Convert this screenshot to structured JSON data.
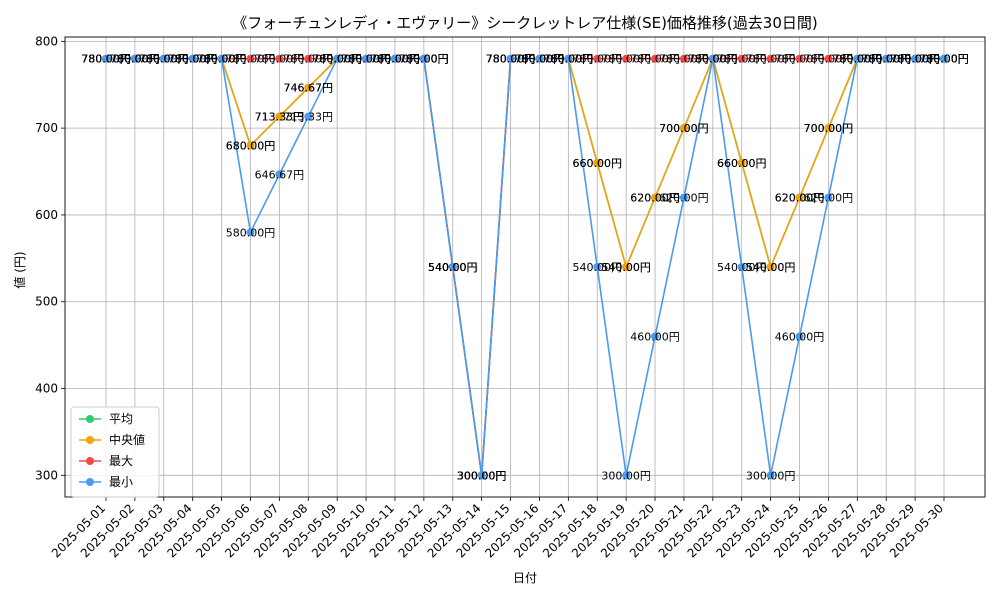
{
  "chart_data": {
    "type": "line",
    "title": "《フォーチュンレディ・エヴァリー》シークレットレア仕様(SE)価格推移(過去30日間)",
    "xlabel": "日付",
    "ylabel": "値 (円)",
    "ylim": [
      275,
      805
    ],
    "yticks": [
      300,
      400,
      500,
      600,
      700,
      800
    ],
    "grid": true,
    "legend_position": "lower-left",
    "label_suffix": "円",
    "categories": [
      "2025-05-01",
      "2025-05-02",
      "2025-05-03",
      "2025-05-04",
      "2025-05-05",
      "2025-05-06",
      "2025-05-07",
      "2025-05-08",
      "2025-05-09",
      "2025-05-10",
      "2025-05-11",
      "2025-05-12",
      "2025-05-13",
      "2025-05-14",
      "2025-05-15",
      "2025-05-16",
      "2025-05-17",
      "2025-05-18",
      "2025-05-19",
      "2025-05-20",
      "2025-05-21",
      "2025-05-22",
      "2025-05-23",
      "2025-05-24",
      "2025-05-25",
      "2025-05-26",
      "2025-05-27",
      "2025-05-28",
      "2025-05-29",
      "2025-05-30"
    ],
    "series": [
      {
        "name": "平均",
        "color": "#2ecc71",
        "values": [
          780,
          780,
          780,
          780,
          780,
          680,
          713.33,
          746.67,
          780,
          780,
          780,
          780,
          540,
          300,
          780,
          780,
          780,
          660,
          540,
          620,
          700,
          780,
          660,
          540,
          620,
          700,
          780,
          780,
          780,
          780
        ]
      },
      {
        "name": "中央値",
        "color": "#f1a20c",
        "values": [
          780,
          780,
          780,
          780,
          780,
          680,
          713.33,
          746.67,
          780,
          780,
          780,
          780,
          540,
          300,
          780,
          780,
          780,
          660,
          540,
          620,
          700,
          780,
          660,
          540,
          620,
          700,
          780,
          780,
          780,
          780
        ]
      },
      {
        "name": "最大",
        "color": "#ef4b4b",
        "values": [
          780,
          780,
          780,
          780,
          780,
          780,
          780,
          780,
          780,
          780,
          780,
          780,
          540,
          300,
          780,
          780,
          780,
          780,
          780,
          780,
          780,
          780,
          780,
          780,
          780,
          780,
          780,
          780,
          780,
          780
        ]
      },
      {
        "name": "最小",
        "color": "#4a9af0",
        "values": [
          780,
          780,
          780,
          780,
          780,
          580,
          646.67,
          713.33,
          780,
          780,
          780,
          780,
          540,
          300,
          780,
          780,
          780,
          540,
          300,
          460,
          620,
          780,
          540,
          300,
          460,
          620,
          780,
          780,
          780,
          780
        ]
      }
    ]
  }
}
